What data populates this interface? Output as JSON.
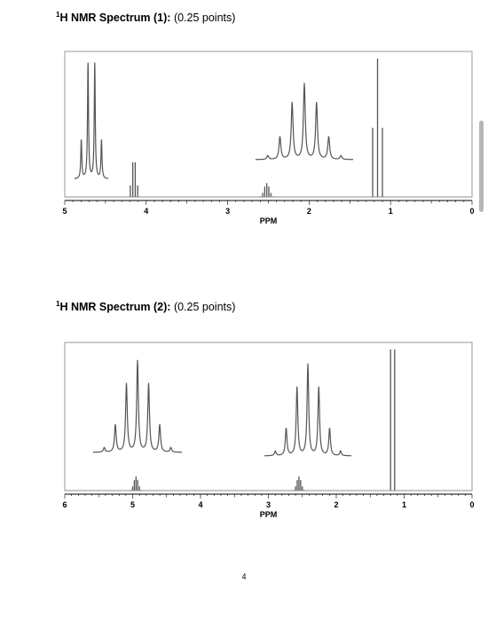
{
  "spectrum1": {
    "heading_bold": "H NMR Spectrum (1):",
    "heading_sup": "1",
    "heading_rest": " (0.25 points)"
  },
  "spectrum2": {
    "heading_bold": "H NMR Spectrum (2):",
    "heading_sup": "1",
    "heading_rest": " (0.25 points)"
  },
  "page_number": "4",
  "chart_data": [
    {
      "type": "line",
      "title": "",
      "xlabel": "PPM",
      "xlim": [
        5,
        0
      ],
      "x_reversed": true,
      "xticks": [
        5,
        4,
        3,
        2,
        1,
        0
      ],
      "grid": false,
      "peaks": [
        {
          "shift": 4.15,
          "multiplicity": "quartet",
          "intensity": 0.25
        },
        {
          "shift": 2.52,
          "multiplicity": "septet",
          "intensity": 0.1
        },
        {
          "shift": 1.16,
          "multiplicity": "triplet",
          "intensity": 1.0
        }
      ],
      "insets": [
        {
          "multiplicity": "quartet",
          "detail_of_shift": 4.15
        },
        {
          "multiplicity": "septet",
          "detail_of_shift": 2.52
        }
      ]
    },
    {
      "type": "line",
      "title": "",
      "xlabel": "PPM",
      "xlim": [
        6,
        0
      ],
      "x_reversed": true,
      "xticks": [
        6,
        5,
        4,
        3,
        2,
        1,
        0
      ],
      "grid": false,
      "peaks": [
        {
          "shift": 4.95,
          "multiplicity": "septet",
          "intensity": 0.1
        },
        {
          "shift": 2.55,
          "multiplicity": "septet",
          "intensity": 0.1
        },
        {
          "shift": 1.17,
          "multiplicity": "doublet-pair",
          "intensity": 1.0
        }
      ],
      "insets": [
        {
          "multiplicity": "septet",
          "detail_of_shift": 4.95
        },
        {
          "multiplicity": "septet",
          "detail_of_shift": 2.55
        }
      ]
    }
  ]
}
